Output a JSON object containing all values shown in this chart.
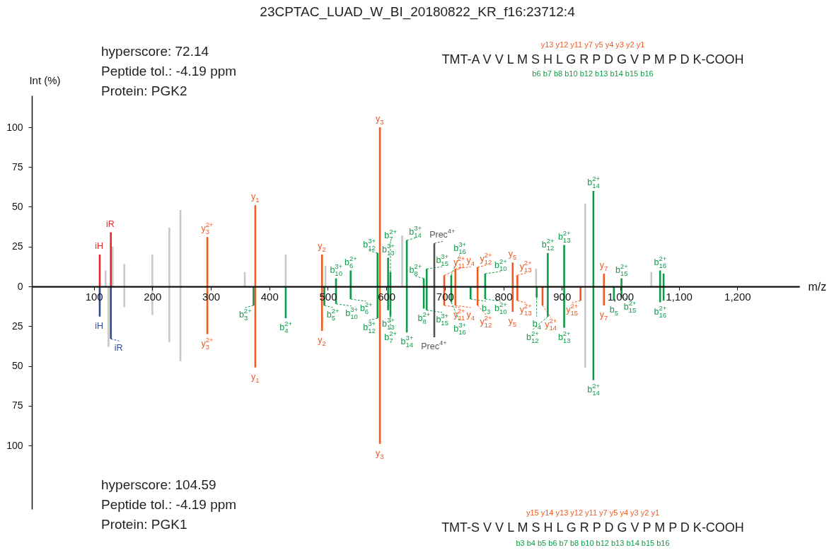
{
  "chart_data": [
    {
      "type": "bar",
      "title": "23CPTAC_LUAD_W_BI_20180822_KR_f16:23712:4",
      "xlabel": "m/z",
      "ylabel": "Int (%)",
      "xlim": [
        0,
        1300
      ],
      "ylim": [
        0,
        120
      ],
      "xticks": [
        100,
        200,
        300,
        400,
        500,
        600,
        700,
        800,
        900,
        {
          "value": 1000,
          "label": "1,000"
        },
        {
          "value": 1100,
          "label": "1,100"
        },
        {
          "value": 1200,
          "label": "1,200"
        }
      ],
      "yticks": [
        0,
        25,
        50,
        75,
        100
      ],
      "series": [
        {
          "color": "#c8c8c8",
          "x": [
            120,
            132,
            152,
            200,
            229,
            248,
            358,
            428,
            496,
            627,
            856,
            940,
            1053
          ],
          "values": [
            10,
            25,
            14,
            20,
            37,
            48,
            9,
            20,
            13,
            32,
            11,
            52,
            9
          ]
        },
        {
          "color": "#e8262a",
          "x": [
            110,
            129
          ],
          "values": [
            20,
            34
          ]
        },
        {
          "color": "#555555",
          "x": [
            682
          ],
          "values": [
            27
          ]
        },
        {
          "color": "#f05a22",
          "x": [
            294,
            376,
            490,
            589,
            699,
            718,
            756,
            816,
            824,
            972
          ],
          "values": [
            31,
            51,
            20,
            100,
            7,
            11,
            12,
            15,
            7,
            8
          ]
        },
        {
          "color": "#0f9a48",
          "x": [
            514,
            539,
            585,
            603,
            607,
            635,
            664,
            669,
            711,
            769,
            876,
            904,
            954,
            1002,
            1068,
            1074
          ],
          "values": [
            5,
            10,
            21,
            18,
            9,
            29,
            5,
            11,
            7,
            8,
            21,
            26,
            60,
            5,
            10,
            8
          ]
        }
      ],
      "annotations": [
        "hyperscore: 72.14",
        "Peptide tol.: -4.19 ppm",
        "Protein: PGK2",
        "TMT-A V V L M S H L G R P D G V P M P D K-COOH",
        "y13 y12 y11 y7 y5 y4 y3 y2 y1",
        "b6 b7 b8 b10 b12 b13 b14 b15 b16",
        {
          "text": "iH",
          "x": 110,
          "y": 20
        },
        {
          "text": "iR",
          "x": 129,
          "y": 34
        },
        {
          "text": "y$_{3}$$^{2+}$",
          "x": 294,
          "y": 31
        },
        {
          "text": "y$_{1}$",
          "x": 376,
          "y": 51
        },
        {
          "text": "y$_{2}$",
          "x": 490,
          "y": 20
        },
        {
          "text": "b$_{10}$$^{3+}$",
          "x": 514,
          "y": 5
        },
        {
          "text": "b$_{6}$$^{2+}$",
          "x": 539,
          "y": 10
        },
        {
          "text": "b$_{12}$$^{3+}$",
          "x": 585,
          "y": 21
        },
        {
          "text": "y$_{3}$",
          "x": 589,
          "y": 100
        },
        {
          "text": "b$_{13}$$^{3+}$",
          "x": 603,
          "y": 18
        },
        {
          "text": "b$_{7}$$^{2+}$",
          "x": 607,
          "y": 9
        },
        {
          "text": "b$_{14}$$^{3+}$",
          "x": 635,
          "y": 29
        },
        {
          "text": "b$_{8}$$^{2+}$",
          "x": 664,
          "y": 5
        },
        {
          "text": "b$_{15}$$^{3+}$",
          "x": 669,
          "y": 11
        },
        {
          "text": "Prec$^{4+}$",
          "x": 682,
          "y": 27
        },
        {
          "text": "y$_{11}$$^{2+}$",
          "x": 699,
          "y": 7
        },
        {
          "text": "b$_{16}$$^{3+}$",
          "x": 711,
          "y": 7
        },
        {
          "text": "y$_{4}$",
          "x": 718,
          "y": 11
        },
        {
          "text": "y$_{12}$$^{2+}$",
          "x": 756,
          "y": 12
        },
        {
          "text": "b$_{10}$$^{2+}$",
          "x": 769,
          "y": 8
        },
        {
          "text": "y$_{5}$",
          "x": 816,
          "y": 15
        },
        {
          "text": "y$_{13}$$^{2+}$",
          "x": 824,
          "y": 7
        },
        {
          "text": "b$_{12}$$^{2+}$",
          "x": 876,
          "y": 21
        },
        {
          "text": "b$_{13}$$^{2+}$",
          "x": 904,
          "y": 26
        },
        {
          "text": "b$_{14}$$^{2+}$",
          "x": 954,
          "y": 60
        },
        {
          "text": "y$_{7}$",
          "x": 972,
          "y": 8
        },
        {
          "text": "b$_{15}$$^{2+}$",
          "x": 1002,
          "y": 5
        },
        {
          "text": "b$_{16}$$^{2+}$",
          "x": 1068,
          "y": 10
        }
      ]
    },
    {
      "type": "bar",
      "xlim": [
        0,
        1300
      ],
      "ylim": [
        140,
        0
      ],
      "xticks": [
        100,
        200,
        300,
        400,
        500,
        600,
        700,
        800,
        900,
        1000,
        1100,
        1200
      ],
      "yticks": [
        25,
        50,
        75,
        100
      ],
      "tick_labels": "y",
      "series": [
        {
          "color": "#c8c8c8",
          "x": [
            125,
            152,
            200,
            229,
            248,
            940
          ],
          "values": [
            38,
            13,
            18,
            35,
            47,
            51
          ]
        },
        {
          "color": "#2a4b9b",
          "x": [
            110,
            129
          ],
          "values": [
            19,
            33
          ]
        },
        {
          "color": "#555555",
          "x": [
            682
          ],
          "values": [
            32
          ]
        },
        {
          "color": "#f05a22",
          "x": [
            294,
            376,
            490,
            589,
            699,
            718,
            756,
            816,
            824,
            867,
            932,
            972
          ],
          "values": [
            30,
            51,
            28,
            99,
            12,
            12,
            12,
            16,
            9,
            12,
            9,
            12
          ]
        },
        {
          "color": "#0f9a48",
          "x": [
            373,
            428,
            494,
            514,
            539,
            585,
            603,
            607,
            635,
            664,
            669,
            711,
            744,
            769,
            857,
            876,
            904,
            954,
            989,
            1002,
            1068,
            1074
          ],
          "values": [
            12,
            20,
            12,
            11,
            8,
            20,
            15,
            19,
            29,
            14,
            15,
            10,
            8,
            8,
            7,
            19,
            26,
            59,
            9,
            7,
            10,
            9
          ]
        }
      ],
      "annotations": [
        "hyperscore: 104.59",
        "Peptide tol.: -4.19 ppm",
        "Protein: PGK1",
        "TMT-S V V L M S H L G R P D G V P M P D K-COOH",
        "y15 y14 y13 y12 y11 y7 y5 y4 y3 y2 y1",
        "b3 b4 b5 b6 b7 b8 b10 b12 b13 b14 b15 b16",
        {
          "text": "iH",
          "x": 110,
          "y": 19
        },
        {
          "text": "iR",
          "x": 129,
          "y": 33
        },
        {
          "text": "y$_{3}$$^{2+}$",
          "x": 294,
          "y": 30
        },
        {
          "text": "b$_{3}$$^{2+}$",
          "x": 373,
          "y": 12
        },
        {
          "text": "y$_{1}$",
          "x": 376,
          "y": 51
        },
        {
          "text": "b$_{4}$$^{2+}$",
          "x": 428,
          "y": 20
        },
        {
          "text": "y$_{2}$",
          "x": 490,
          "y": 28
        },
        {
          "text": "b$_{5}$$^{2+}$",
          "x": 494,
          "y": 12
        },
        {
          "text": "b$_{10}$$^{3+}$",
          "x": 514,
          "y": 11
        },
        {
          "text": "b$_{6}$$^{2+}$",
          "x": 539,
          "y": 8
        },
        {
          "text": "b$_{12}$$^{3+}$",
          "x": 585,
          "y": 20
        },
        {
          "text": "y$_{3}$",
          "x": 589,
          "y": 99
        },
        {
          "text": "b$_{13}$$^{3+}$",
          "x": 603,
          "y": 15
        },
        {
          "text": "b$_{7}$$^{2+}$",
          "x": 607,
          "y": 19
        },
        {
          "text": "b$_{14}$$^{3+}$",
          "x": 635,
          "y": 29
        },
        {
          "text": "b$_{8}$$^{2+}$",
          "x": 664,
          "y": 14
        },
        {
          "text": "b$_{15}$$^{3+}$",
          "x": 669,
          "y": 15
        },
        {
          "text": "Prec$^{4+}$",
          "x": 682,
          "y": 32
        },
        {
          "text": "y$_{11}$$^{2+}$",
          "x": 699,
          "y": 12
        },
        {
          "text": "b$_{16}$$^{3+}$",
          "x": 711,
          "y": 10
        },
        {
          "text": "y$_{4}$",
          "x": 718,
          "y": 12
        },
        {
          "text": "b$_{3}$",
          "x": 744,
          "y": 8
        },
        {
          "text": "y$_{12}$$^{2+}$",
          "x": 756,
          "y": 12
        },
        {
          "text": "b$_{10}$$^{2+}$",
          "x": 769,
          "y": 8
        },
        {
          "text": "y$_{5}$",
          "x": 816,
          "y": 16
        },
        {
          "text": "y$_{13}$$^{2+}$",
          "x": 824,
          "y": 9
        },
        {
          "text": "b$_{4}$",
          "x": 857,
          "y": 7
        },
        {
          "text": "y$_{14}$$^{2+}$",
          "x": 867,
          "y": 12
        },
        {
          "text": "b$_{12}$$^{2+}$",
          "x": 876,
          "y": 19
        },
        {
          "text": "b$_{13}$$^{2+}$",
          "x": 904,
          "y": 26
        },
        {
          "text": "y$_{15}$$^{2+}$",
          "x": 932,
          "y": 9
        },
        {
          "text": "b$_{14}$$^{2+}$",
          "x": 954,
          "y": 59
        },
        {
          "text": "y$_{7}$",
          "x": 972,
          "y": 12
        },
        {
          "text": "b$_{5}$",
          "x": 989,
          "y": 9
        },
        {
          "text": "b$_{15}$$^{2+}$",
          "x": 1002,
          "y": 7
        },
        {
          "text": "b$_{16}$$^{2+}$",
          "x": 1068,
          "y": 10
        }
      ]
    }
  ]
}
